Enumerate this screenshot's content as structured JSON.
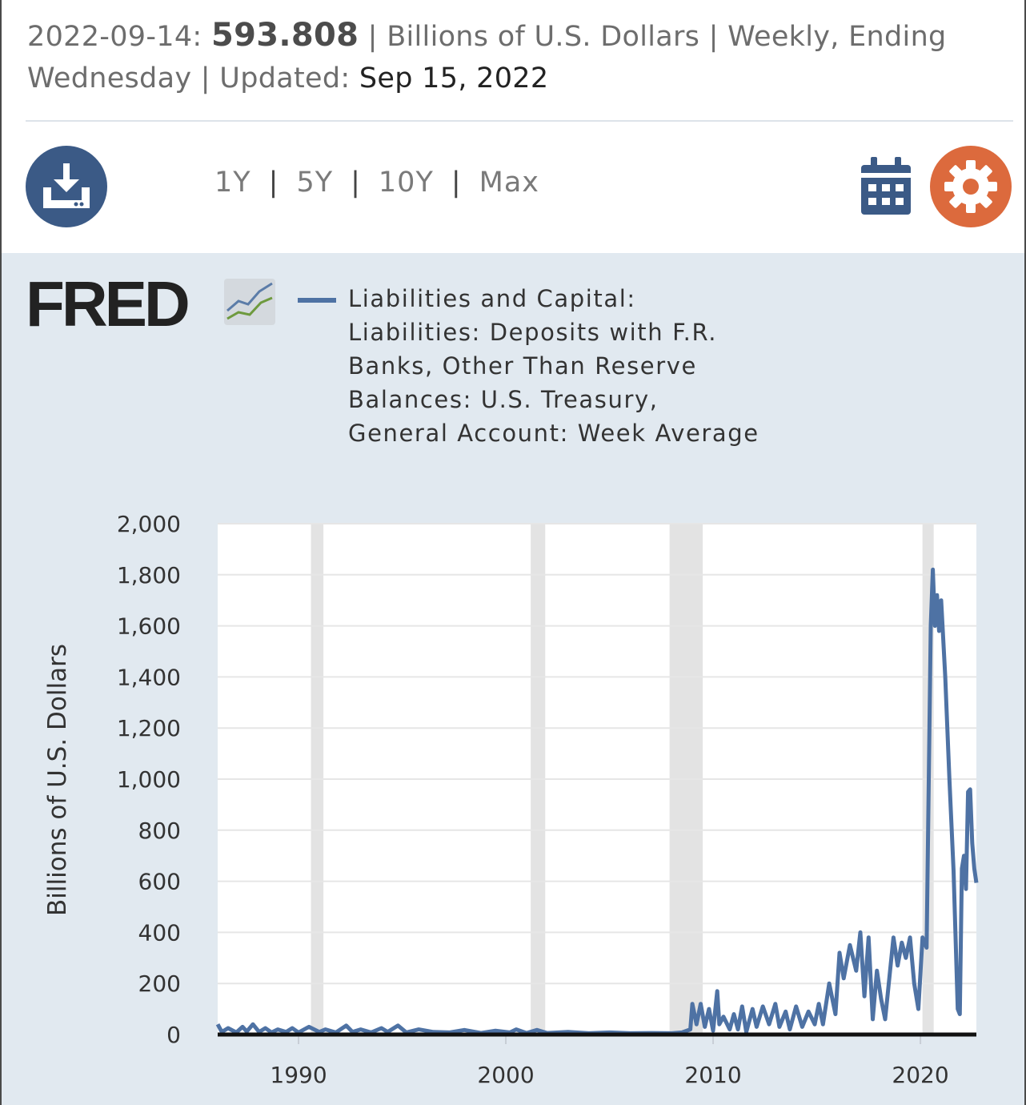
{
  "header": {
    "date": "2022-09-14:",
    "value": "593.808",
    "units_freq": "| Billions of U.S. Dollars | Weekly, Ending Wednesday | Updated:",
    "updated": "Sep 15, 2022"
  },
  "toolbar": {
    "download_icon": "download-icon",
    "ranges": [
      "1Y",
      "5Y",
      "10Y",
      "Max"
    ],
    "calendar_icon": "calendar-icon",
    "settings_icon": "gear-icon"
  },
  "logo": {
    "text": "FRED"
  },
  "colors": {
    "series": "#4e72a4",
    "panel_bg": "#e1e9f0",
    "recession": "#e3e3e3",
    "download_btn": "#3b5a86",
    "settings_btn": "#dc6a3d"
  },
  "chart_data": {
    "type": "line",
    "title": "",
    "legend": [
      "Liabilities and Capital: Liabilities: Deposits with F.R. Banks, Other Than Reserve Balances: U.S. Treasury, General Account: Week Average"
    ],
    "ylabel": "Billions of U.S. Dollars",
    "xlabel": "",
    "ylim": [
      0,
      2000
    ],
    "xlim": [
      1986.1,
      2022.7
    ],
    "y_ticks": [
      "0",
      "200",
      "400",
      "600",
      "800",
      "1,000",
      "1,200",
      "1,400",
      "1,600",
      "1,800",
      "2,000"
    ],
    "x_ticks": [
      {
        "value": 1990,
        "label": "1990"
      },
      {
        "value": 2000,
        "label": "2000"
      },
      {
        "value": 2010,
        "label": "2010"
      },
      {
        "value": 2020,
        "label": "2020"
      }
    ],
    "grid": true,
    "recessions": [
      [
        1990.6,
        1991.2
      ],
      [
        2001.2,
        2001.9
      ],
      [
        2007.9,
        2009.5
      ],
      [
        2020.1,
        2020.3
      ]
    ],
    "series": [
      {
        "name": "Liabilities and Capital: Liabilities: Deposits with F.R. Banks, Other Than Reserve Balances: U.S. Treasury, General Account: Week Average",
        "points": [
          [
            1986.1,
            40
          ],
          [
            1986.3,
            10
          ],
          [
            1986.6,
            25
          ],
          [
            1987.0,
            8
          ],
          [
            1987.3,
            30
          ],
          [
            1987.5,
            12
          ],
          [
            1987.8,
            40
          ],
          [
            1988.1,
            10
          ],
          [
            1988.4,
            25
          ],
          [
            1988.7,
            8
          ],
          [
            1989.0,
            20
          ],
          [
            1989.4,
            10
          ],
          [
            1989.7,
            25
          ],
          [
            1990.0,
            8
          ],
          [
            1990.5,
            30
          ],
          [
            1991.0,
            10
          ],
          [
            1991.3,
            20
          ],
          [
            1991.8,
            8
          ],
          [
            1992.3,
            35
          ],
          [
            1992.6,
            10
          ],
          [
            1993.0,
            20
          ],
          [
            1993.5,
            8
          ],
          [
            1994.0,
            25
          ],
          [
            1994.3,
            10
          ],
          [
            1994.8,
            35
          ],
          [
            1995.2,
            8
          ],
          [
            1995.8,
            20
          ],
          [
            1996.5,
            10
          ],
          [
            1997.3,
            8
          ],
          [
            1998.0,
            18
          ],
          [
            1998.8,
            6
          ],
          [
            1999.5,
            15
          ],
          [
            2000.2,
            8
          ],
          [
            2000.5,
            20
          ],
          [
            2001.0,
            6
          ],
          [
            2001.5,
            18
          ],
          [
            2002.0,
            6
          ],
          [
            2003.0,
            10
          ],
          [
            2004.0,
            5
          ],
          [
            2005.0,
            8
          ],
          [
            2006.0,
            5
          ],
          [
            2007.0,
            6
          ],
          [
            2008.0,
            5
          ],
          [
            2008.5,
            8
          ],
          [
            2008.9,
            20
          ],
          [
            2009.0,
            120
          ],
          [
            2009.2,
            40
          ],
          [
            2009.4,
            120
          ],
          [
            2009.6,
            30
          ],
          [
            2009.8,
            100
          ],
          [
            2010.0,
            15
          ],
          [
            2010.2,
            170
          ],
          [
            2010.3,
            40
          ],
          [
            2010.5,
            70
          ],
          [
            2010.8,
            20
          ],
          [
            2011.0,
            80
          ],
          [
            2011.2,
            20
          ],
          [
            2011.4,
            110
          ],
          [
            2011.6,
            10
          ],
          [
            2011.9,
            100
          ],
          [
            2012.1,
            30
          ],
          [
            2012.4,
            110
          ],
          [
            2012.7,
            40
          ],
          [
            2013.0,
            120
          ],
          [
            2013.2,
            30
          ],
          [
            2013.5,
            90
          ],
          [
            2013.7,
            20
          ],
          [
            2014.0,
            110
          ],
          [
            2014.3,
            30
          ],
          [
            2014.6,
            90
          ],
          [
            2014.9,
            40
          ],
          [
            2015.1,
            120
          ],
          [
            2015.3,
            40
          ],
          [
            2015.6,
            200
          ],
          [
            2015.9,
            80
          ],
          [
            2016.1,
            320
          ],
          [
            2016.3,
            220
          ],
          [
            2016.6,
            350
          ],
          [
            2016.9,
            250
          ],
          [
            2017.1,
            400
          ],
          [
            2017.3,
            150
          ],
          [
            2017.5,
            380
          ],
          [
            2017.7,
            60
          ],
          [
            2017.9,
            250
          ],
          [
            2018.1,
            140
          ],
          [
            2018.3,
            60
          ],
          [
            2018.5,
            220
          ],
          [
            2018.7,
            380
          ],
          [
            2018.9,
            270
          ],
          [
            2019.1,
            360
          ],
          [
            2019.3,
            300
          ],
          [
            2019.5,
            380
          ],
          [
            2019.7,
            200
          ],
          [
            2019.9,
            100
          ],
          [
            2020.1,
            380
          ],
          [
            2020.3,
            340
          ],
          [
            2020.5,
            1600
          ],
          [
            2020.6,
            1820
          ],
          [
            2020.7,
            1600
          ],
          [
            2020.8,
            1720
          ],
          [
            2020.9,
            1580
          ],
          [
            2021.0,
            1700
          ],
          [
            2021.2,
            1400
          ],
          [
            2021.4,
            1000
          ],
          [
            2021.6,
            640
          ],
          [
            2021.8,
            100
          ],
          [
            2021.9,
            80
          ],
          [
            2022.0,
            650
          ],
          [
            2022.1,
            700
          ],
          [
            2022.2,
            570
          ],
          [
            2022.3,
            950
          ],
          [
            2022.4,
            960
          ],
          [
            2022.5,
            750
          ],
          [
            2022.6,
            650
          ],
          [
            2022.7,
            594
          ]
        ]
      }
    ]
  }
}
